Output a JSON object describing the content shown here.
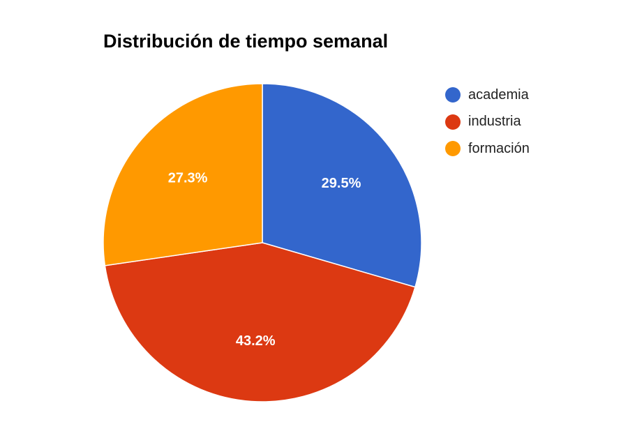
{
  "chart_data": {
    "type": "pie",
    "title": "Distribución de tiempo semanal",
    "categories": [
      "academia",
      "industria",
      "formación"
    ],
    "values": [
      29.5,
      43.2,
      27.3
    ],
    "value_labels": [
      "29.5%",
      "43.2%",
      "27.3%"
    ],
    "colors": [
      "#3366cc",
      "#dc3912",
      "#ff9900"
    ],
    "start_angle": "12 o'clock",
    "direction": "clockwise",
    "legend_position": "right",
    "label_color": "#ffffff"
  }
}
